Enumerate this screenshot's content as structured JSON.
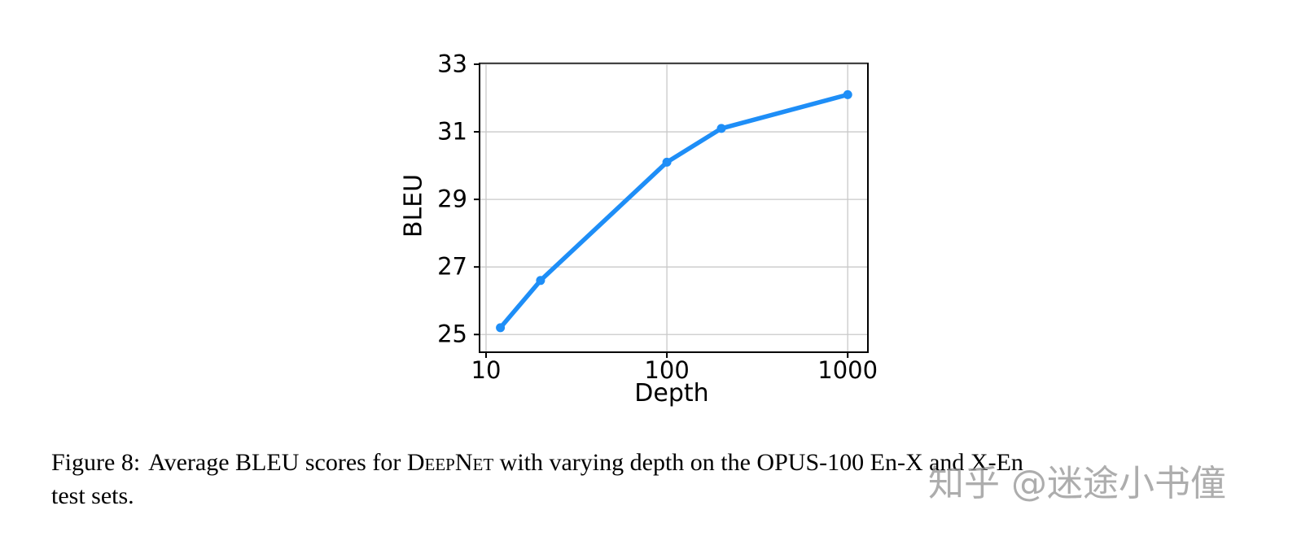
{
  "chart_data": {
    "type": "line",
    "series_name": "DeepNet average BLEU vs depth",
    "x": [
      12,
      20,
      100,
      200,
      1000
    ],
    "y": [
      25.2,
      26.6,
      30.1,
      31.1,
      32.1
    ],
    "xlabel": "Depth",
    "ylabel": "BLEU",
    "x_scale": "log",
    "xlim": [
      9.3,
      1280
    ],
    "ylim": [
      24.5,
      33
    ],
    "x_ticks": [
      10,
      100,
      1000
    ],
    "y_ticks": [
      25,
      27,
      29,
      31,
      33
    ],
    "grid": true,
    "legend": "none",
    "line_color": "#1e8ef7",
    "grid_color": "#c9c9c9"
  },
  "caption": {
    "prefix": "Figure 8:",
    "body_1": "Average BLEU scores for ",
    "deepnet": "DeepNet",
    "body_2": " with varying depth on the OPUS-100 En-X and X-En",
    "line2": "test sets."
  },
  "watermark": "知乎 @迷途小书僮"
}
